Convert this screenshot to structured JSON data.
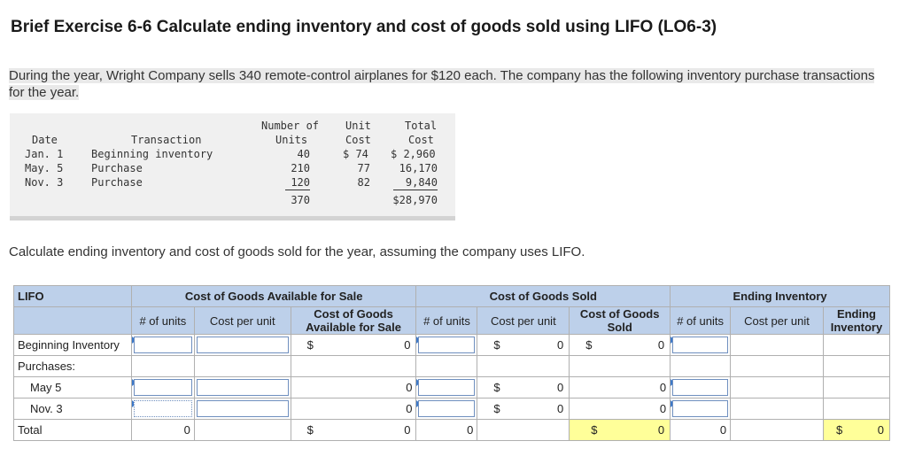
{
  "title": "Brief Exercise 6-6 Calculate ending inventory and cost of goods sold using LIFO (LO6-3)",
  "intro": "During the year, Wright Company sells 340 remote-control airplanes for $120 each. The company has the following inventory purchase transactions for the year.",
  "inventory": {
    "headers": {
      "date": "Date",
      "transaction": "Transaction",
      "units_1": "Number of",
      "units_2": "Units",
      "unit_cost_1": "Unit",
      "unit_cost_2": "Cost",
      "total_cost_1": "Total",
      "total_cost_2": "Cost"
    },
    "rows": [
      {
        "date": "Jan. 1",
        "transaction": "Beginning inventory",
        "units": "40",
        "unit_cost": "$ 74",
        "total_cost": "$ 2,960"
      },
      {
        "date": "May. 5",
        "transaction": "Purchase",
        "units": "210",
        "unit_cost": "77",
        "total_cost": "16,170"
      },
      {
        "date": "Nov. 3",
        "transaction": "Purchase",
        "units": "120",
        "unit_cost": "82",
        "total_cost": "9,840"
      }
    ],
    "total_units": "370",
    "total_cost": "$28,970"
  },
  "question": "Calculate ending inventory and cost of goods sold for the year, assuming the company uses LIFO.",
  "table": {
    "corner": "LIFO",
    "groups": {
      "available": "Cost of Goods Available for Sale",
      "sold": "Cost of Goods Sold",
      "ending": "Ending Inventory"
    },
    "subheaders": {
      "units": "# of units",
      "cost_per_unit": "Cost per unit",
      "cogas": "Cost of Goods Available for Sale",
      "cogs": "Cost of Goods Sold",
      "ending_inv": "Ending Inventory"
    },
    "rows": {
      "beginning": "Beginning Inventory",
      "purchases": "Purchases:",
      "may5": "May 5",
      "nov3": "Nov. 3",
      "total": "Total"
    },
    "dollar": "$",
    "zero": "0"
  }
}
